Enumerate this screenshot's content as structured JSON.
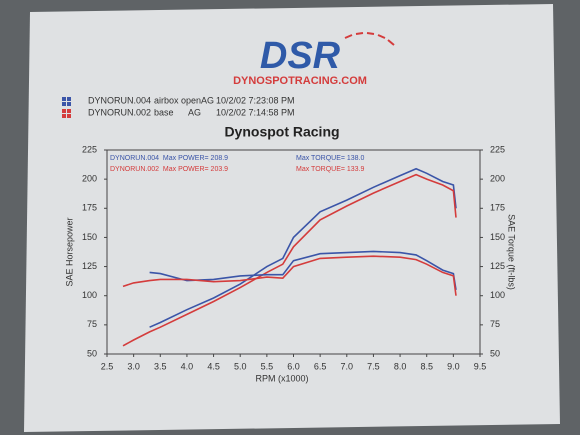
{
  "logo": {
    "mark": "DSR",
    "site": "DYNOSPOTRACING.COM"
  },
  "chart_data": {
    "type": "line",
    "title": "Dynospot Racing",
    "legend": [
      {
        "file": "DYNORUN.004",
        "note": "airbox openAG",
        "date": "10/2/02 7:23:08 PM",
        "color": "#3b55a8"
      },
      {
        "file": "DYNORUN.002",
        "note": "base      AG",
        "date": "10/2/02 7:14:58 PM",
        "color": "#d43c3c"
      }
    ],
    "annotations": [
      {
        "text": "DYNORUN.004  Max POWER= 208.9",
        "color": "#3b55a8"
      },
      {
        "text": "DYNORUN.002  Max POWER= 203.9",
        "color": "#d43c3c"
      },
      {
        "text": "Max TORQUE= 138.0",
        "color": "#3b55a8"
      },
      {
        "text": "Max TORQUE= 133.9",
        "color": "#d43c3c"
      }
    ],
    "x_label": "RPM (x1000)",
    "y_label": "SAE Horsepower",
    "y2_label": "SAE Torque (ft-lbs)",
    "x": [
      2.8,
      3.0,
      3.3,
      3.5,
      4.0,
      4.5,
      5.0,
      5.5,
      5.8,
      6.0,
      6.5,
      7.0,
      7.5,
      8.0,
      8.3,
      8.5,
      8.8,
      9.0,
      9.05
    ],
    "series": [
      {
        "color": "#3b55a8",
        "axis": "y",
        "values": [
          null,
          null,
          73,
          77,
          88,
          98,
          110,
          125,
          132,
          150,
          172,
          182,
          193,
          203,
          208.9,
          205,
          198,
          195,
          175
        ]
      },
      {
        "color": "#d43c3c",
        "axis": "y",
        "values": [
          57,
          62,
          69,
          73,
          84,
          95,
          107,
          120,
          127,
          142,
          165,
          177,
          188,
          198,
          203.9,
          200,
          195,
          190,
          167
        ]
      },
      {
        "color": "#3b55a8",
        "axis": "y2",
        "values": [
          null,
          null,
          120,
          119,
          113,
          114,
          117,
          118,
          118,
          130,
          136,
          137,
          138,
          137,
          135,
          130,
          122,
          119,
          105
        ]
      },
      {
        "color": "#d43c3c",
        "axis": "y2",
        "values": [
          108,
          111,
          113,
          114,
          114,
          112,
          113,
          116,
          115,
          125,
          132,
          133,
          133.9,
          133,
          131,
          127,
          120,
          117,
          100
        ]
      }
    ],
    "xlim": [
      2.5,
      9.5
    ],
    "xticks": [
      2.5,
      {
        "value": 3,
        "label": "3.0"
      },
      3.5,
      {
        "value": 4,
        "label": "4.0"
      },
      4.5,
      {
        "value": 5,
        "label": "5.0"
      },
      5.5,
      {
        "value": 6,
        "label": "6.0"
      },
      6.5,
      {
        "value": 7,
        "label": "7.0"
      },
      7.5,
      {
        "value": 8,
        "label": "8.0"
      },
      8.5,
      {
        "value": 9,
        "label": "9.0"
      },
      9.5
    ],
    "ylim": [
      50,
      225
    ],
    "yticks": [
      50,
      75,
      100,
      125,
      150,
      175,
      200,
      225
    ],
    "y2lim": [
      50,
      225
    ],
    "y2ticks": [
      50,
      75,
      100,
      125,
      150,
      175,
      200,
      225
    ],
    "grid": false
  }
}
